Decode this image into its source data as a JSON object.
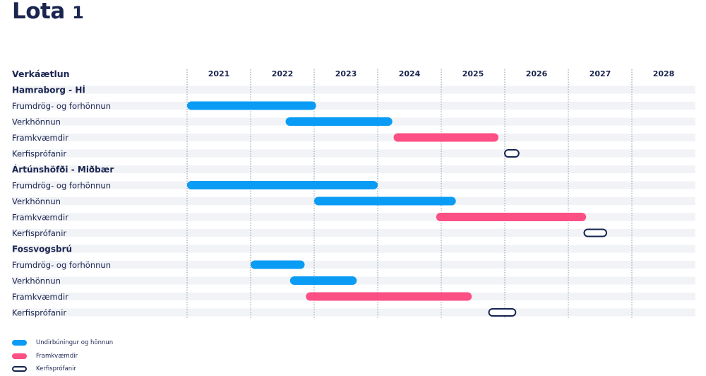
{
  "title": "Lota",
  "title_number": "1",
  "colors": {
    "design": "#0a9cf5",
    "construction": "#fc4f84",
    "testing_outline": "#142350",
    "text": "#1a2550",
    "row_stripe": "#f2f3f6",
    "grid": "#8a94aa"
  },
  "chart_data": {
    "type": "gantt",
    "header_label": "Verkáætlun",
    "years": [
      "2021",
      "2022",
      "2023",
      "2024",
      "2025",
      "2026",
      "2027",
      "2028"
    ],
    "x_range": [
      2021,
      2029
    ],
    "rows": [
      {
        "label": "Hamraborg - HÍ",
        "group": true
      },
      {
        "label": "Frumdrög- og forhönnun",
        "kind": "design",
        "start": 2021.0,
        "end": 2023.03
      },
      {
        "label": "Verkhönnun",
        "kind": "design",
        "start": 2022.55,
        "end": 2024.23
      },
      {
        "label": "Framkvæmdir",
        "kind": "construction",
        "start": 2024.25,
        "end": 2025.9
      },
      {
        "label": "Kerfisprófanir",
        "kind": "testing",
        "start": 2026.0,
        "end": 2026.22
      },
      {
        "label": "Ártúnshöfði - Miðbær",
        "group": true
      },
      {
        "label": "Frumdrög- og forhönnun",
        "kind": "design",
        "start": 2021.0,
        "end": 2024.0
      },
      {
        "label": "Verkhönnun",
        "kind": "design",
        "start": 2023.0,
        "end": 2025.23
      },
      {
        "label": "Framkvæmdir",
        "kind": "construction",
        "start": 2024.92,
        "end": 2027.28
      },
      {
        "label": "Kerfisprófanir",
        "kind": "testing",
        "start": 2027.25,
        "end": 2027.6
      },
      {
        "label": "Fossvogsbrú",
        "group": true
      },
      {
        "label": "Frumdrög- og forhönnun",
        "kind": "design",
        "start": 2022.0,
        "end": 2022.85
      },
      {
        "label": "Verkhönnun",
        "kind": "design",
        "start": 2022.62,
        "end": 2023.67
      },
      {
        "label": "Framkvæmdir",
        "kind": "construction",
        "start": 2022.87,
        "end": 2025.48
      },
      {
        "label": "Kerfisprófanir",
        "kind": "testing",
        "start": 2025.75,
        "end": 2026.17
      }
    ],
    "legend": [
      {
        "label": "Undirbúningur og hönnun",
        "kind": "design"
      },
      {
        "label": "Framkvæmdir",
        "kind": "construction"
      },
      {
        "label": "Kerfisprófanir",
        "kind": "testing"
      }
    ]
  }
}
